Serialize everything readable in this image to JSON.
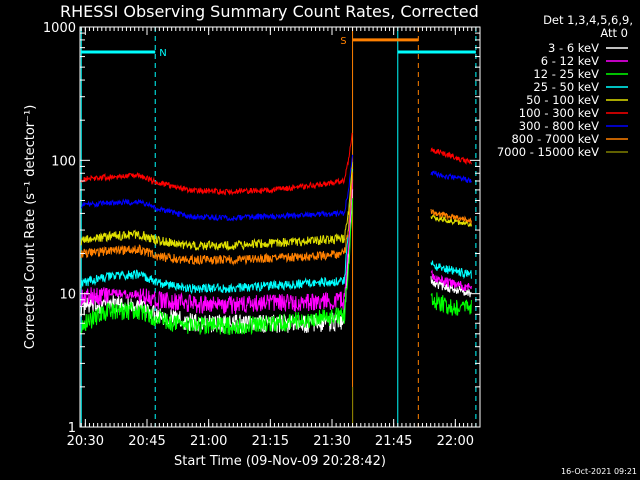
{
  "chart_data": {
    "type": "line",
    "title": "RHESSI Observing Summary Count Rates, Corrected",
    "xlabel": "Start Time (09-Nov-09 20:28:42)",
    "ylabel": "Corrected Count Rate (s⁻¹ detector⁻¹)",
    "y_scale": "log",
    "ylim": [
      1,
      1000
    ],
    "xlim": [
      "20:28:42",
      "22:06:00"
    ],
    "x_ticks": [
      "20:30",
      "20:45",
      "21:00",
      "21:15",
      "21:30",
      "21:45",
      "22:00"
    ],
    "y_ticks": [
      "1",
      "10",
      "100",
      "1000"
    ],
    "legend_header": [
      "Det 1,3,4,5,6,9,",
      "Att 0"
    ],
    "legend_position": "right",
    "series": [
      {
        "name": "3 - 6 keV",
        "color": "#ffffff",
        "x": [
          "20:29",
          "20:36",
          "20:43",
          "20:48",
          "20:55",
          "21:05",
          "21:15",
          "21:25",
          "21:33",
          "21:34",
          "21:35",
          "21:55",
          "21:59",
          "22:04"
        ],
        "values": [
          8,
          8.5,
          8,
          7,
          6.2,
          6,
          6,
          6,
          6.3,
          20,
          60,
          12,
          11,
          10
        ]
      },
      {
        "name": "6 - 12 keV",
        "color": "#ff00ff",
        "x": [
          "20:29",
          "20:36",
          "20:43",
          "20:48",
          "20:55",
          "21:05",
          "21:15",
          "21:25",
          "21:33",
          "21:34",
          "21:35",
          "21:55",
          "21:59",
          "22:04"
        ],
        "values": [
          9.5,
          10,
          10,
          9,
          8.5,
          8.3,
          8.5,
          8.8,
          9,
          22,
          70,
          13,
          12,
          11
        ]
      },
      {
        "name": "12 - 25 keV",
        "color": "#00ff00",
        "x": [
          "20:29",
          "20:36",
          "20:43",
          "20:48",
          "20:55",
          "21:05",
          "21:15",
          "21:25",
          "21:33",
          "21:34",
          "21:35",
          "21:55",
          "21:59",
          "22:04"
        ],
        "values": [
          6,
          7.5,
          7.5,
          6.5,
          5.8,
          5.8,
          6,
          6.5,
          7,
          15,
          50,
          9,
          8,
          8
        ]
      },
      {
        "name": "25 - 50 keV",
        "color": "#00ffff",
        "x": [
          "20:29",
          "20:36",
          "20:43",
          "20:48",
          "20:55",
          "21:05",
          "21:15",
          "21:25",
          "21:33",
          "21:34",
          "21:35",
          "21:55",
          "21:59",
          "22:04"
        ],
        "values": [
          12,
          13.5,
          14,
          12,
          11,
          11,
          11.5,
          12,
          12.5,
          30,
          90,
          16,
          15,
          14
        ]
      },
      {
        "name": "50 - 100 keV",
        "color": "#e0e000",
        "x": [
          "20:29",
          "20:36",
          "20:43",
          "20:48",
          "20:55",
          "21:05",
          "21:15",
          "21:25",
          "21:33",
          "21:34",
          "21:35",
          "21:55",
          "21:59",
          "22:04"
        ],
        "values": [
          25,
          27,
          28,
          25,
          23,
          23,
          24,
          25,
          26,
          40,
          100,
          37,
          35,
          33
        ]
      },
      {
        "name": "100 - 300 keV",
        "color": "#ff0000",
        "x": [
          "20:29",
          "20:36",
          "20:43",
          "20:48",
          "20:55",
          "21:05",
          "21:15",
          "21:25",
          "21:33",
          "21:34",
          "21:35",
          "21:55",
          "21:59",
          "22:04"
        ],
        "values": [
          72,
          75,
          77,
          68,
          60,
          58,
          60,
          65,
          70,
          100,
          160,
          118,
          108,
          95
        ]
      },
      {
        "name": "300 - 800 keV",
        "color": "#0000ff",
        "x": [
          "20:29",
          "20:36",
          "20:43",
          "20:48",
          "20:55",
          "21:05",
          "21:15",
          "21:25",
          "21:33",
          "21:34",
          "21:35",
          "21:55",
          "21:59",
          "22:04"
        ],
        "values": [
          46,
          48,
          49,
          43,
          38,
          37,
          38,
          39,
          40,
          60,
          110,
          80,
          75,
          70
        ]
      },
      {
        "name": "800 - 7000 keV",
        "color": "#ff8000",
        "x": [
          "20:29",
          "20:36",
          "20:43",
          "20:48",
          "20:55",
          "21:05",
          "21:15",
          "21:25",
          "21:33",
          "21:34",
          "21:35",
          "21:55",
          "21:59",
          "22:04"
        ],
        "values": [
          20,
          21,
          21.5,
          19,
          18,
          18,
          18.5,
          19,
          20,
          30,
          80,
          40,
          38,
          35
        ]
      },
      {
        "name": "7000 - 15000 keV",
        "color": "#808000",
        "x": [
          "21:35",
          "21:35"
        ],
        "values": [
          1,
          2
        ]
      }
    ],
    "annotations": [
      {
        "label": "N",
        "color": "#00ffff",
        "from": "20:29",
        "to": "20:47",
        "level": 650
      },
      {
        "label": "S",
        "color": "#ff8000",
        "from": "21:35",
        "to": "21:51",
        "level": 800
      },
      {
        "label": "",
        "color": "#00ffff",
        "from": "21:46",
        "to": "22:05",
        "level": 650
      }
    ],
    "markers": [
      {
        "time": "20:29",
        "color": "#00ffff",
        "style": "solid"
      },
      {
        "time": "20:47",
        "color": "#00ffff",
        "style": "dashed"
      },
      {
        "time": "21:35",
        "color": "#ff8000",
        "style": "solid"
      },
      {
        "time": "21:46",
        "color": "#00ffff",
        "style": "solid"
      },
      {
        "time": "21:51",
        "color": "#ff8000",
        "style": "dashed"
      },
      {
        "time": "22:05",
        "color": "#00ffff",
        "style": "dashed"
      }
    ],
    "data_gap": [
      "21:35",
      "21:54"
    ],
    "footer_date": "16-Oct-2021 09:21"
  }
}
